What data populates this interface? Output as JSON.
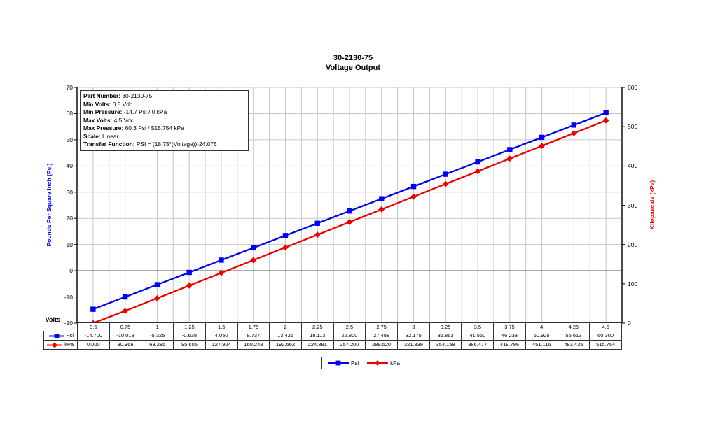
{
  "title": {
    "line1": "30-2130-75",
    "line2": "Voltage Output"
  },
  "info_box": {
    "lines": [
      {
        "label": "Part Number:",
        "value": " 30-2130-75"
      },
      {
        "label": "Min Volts:",
        "value": " 0.5 Vdc"
      },
      {
        "label": "Min Pressure:",
        "value": " -14.7 Psi / 0 kPa"
      },
      {
        "label": "Max Volts:",
        "value": " 4.5 Vdc"
      },
      {
        "label": "Max Pressure:",
        "value": " 60.3 Psi / 515.754 kPa"
      },
      {
        "label": "Scale:",
        "value": " Linear"
      },
      {
        "label": "Transfer Function:",
        "value": " PSI = (18.75*(Voltage))-24.075"
      }
    ]
  },
  "axes": {
    "left": {
      "title": "Pounds Per Square Inch (Psi)",
      "color": "#0000EE",
      "ticks": [
        70,
        60,
        50,
        40,
        30,
        20,
        10,
        0,
        -10,
        -20
      ]
    },
    "right": {
      "title": "Kilopascals (kPa)",
      "color": "#EE0000",
      "ticks": [
        600,
        500,
        400,
        300,
        200,
        100,
        0
      ]
    },
    "x": {
      "title": "Volts"
    }
  },
  "chart_data": {
    "type": "line",
    "title": "30-2130-75 Voltage Output",
    "x": [
      0.5,
      0.75,
      1,
      1.25,
      1.5,
      1.75,
      2,
      2.25,
      2.5,
      2.75,
      3,
      3.25,
      3.5,
      3.75,
      4,
      4.25,
      4.5
    ],
    "series": [
      {
        "name": "Psi",
        "axis": "left",
        "color": "#0000EE",
        "marker": "square",
        "values": [
          -14.7,
          -10.013,
          -5.325,
          -0.638,
          4.05,
          8.737,
          13.425,
          18.113,
          22.8,
          27.488,
          32.175,
          36.863,
          41.55,
          46.238,
          50.925,
          55.613,
          60.3
        ]
      },
      {
        "name": "kPa",
        "axis": "right",
        "color": "#EE0000",
        "marker": "diamond",
        "values": [
          0.0,
          30.966,
          63.285,
          95.605,
          127.924,
          160.243,
          192.562,
          224.881,
          257.2,
          289.52,
          321.839,
          354.158,
          386.477,
          418.796,
          451.116,
          483.435,
          515.754
        ]
      }
    ],
    "ylim_left": [
      -20,
      70
    ],
    "ylim_right": [
      0,
      600
    ],
    "grid": true,
    "legend_position": "bottom"
  },
  "table": {
    "volts": [
      "0.5",
      "0.75",
      "1",
      "1.25",
      "1.5",
      "1.75",
      "2",
      "2.25",
      "2.5",
      "2.75",
      "3",
      "3.25",
      "3.5",
      "3.75",
      "4",
      "4.25",
      "4.5"
    ],
    "rows": [
      {
        "header": "Psi",
        "marker": "square",
        "color": "#0000EE",
        "cells": [
          "-14.700",
          "-10.013",
          "-5.325",
          "-0.638",
          "4.050",
          "8.737",
          "13.425",
          "18.113",
          "22.800",
          "27.488",
          "32.175",
          "36.863",
          "41.550",
          "46.238",
          "50.925",
          "55.613",
          "60.300"
        ]
      },
      {
        "header": "kPa",
        "marker": "diamond",
        "color": "#EE0000",
        "cells": [
          "0.000",
          "30.966",
          "63.285",
          "95.605",
          "127.924",
          "160.243",
          "192.562",
          "224.881",
          "257.200",
          "289.520",
          "321.839",
          "354.158",
          "386.477",
          "418.796",
          "451.116",
          "483.435",
          "515.754"
        ]
      }
    ]
  },
  "legend": {
    "items": [
      {
        "label": "Psi",
        "color": "#0000EE",
        "marker": "square"
      },
      {
        "label": "kPa",
        "color": "#EE0000",
        "marker": "diamond"
      }
    ]
  },
  "colors": {
    "gridline": "#C6C6C6",
    "axis_frame": "#000000",
    "zero_line": "#595959"
  }
}
